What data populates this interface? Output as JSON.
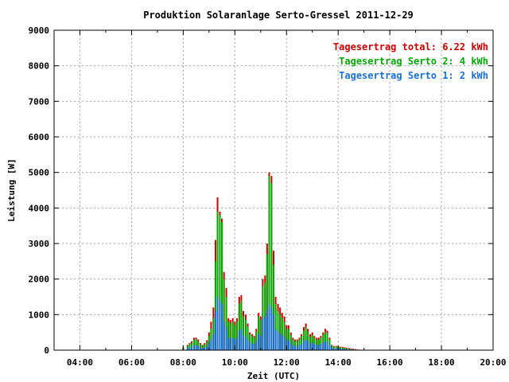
{
  "chart_data": {
    "type": "bar",
    "title": "Produktion Solaranlage Serto-Gressel 2011-12-29",
    "xlabel": "Zeit (UTC)",
    "ylabel": "Leistung [W]",
    "xlim": [
      3.0,
      20.0
    ],
    "ylim": [
      0,
      9000
    ],
    "x_ticks": [
      4,
      6,
      8,
      10,
      12,
      14,
      16,
      18,
      20
    ],
    "x_tick_labels": [
      "04:00",
      "06:00",
      "08:00",
      "10:00",
      "12:00",
      "14:00",
      "16:00",
      "18:00",
      "20:00"
    ],
    "y_ticks": [
      0,
      1000,
      2000,
      3000,
      4000,
      5000,
      6000,
      7000,
      8000,
      9000
    ],
    "y_tick_labels": [
      "0",
      "1000",
      "2000",
      "3000",
      "4000",
      "5000",
      "6000",
      "7000",
      "8000",
      "9000"
    ],
    "grid": true,
    "legend_position": "top-right",
    "legend": [
      {
        "label": "Tagesertrag total: 6.22 kWh",
        "color": "#cc0000"
      },
      {
        "label": "Tagesertrag Serto 2: 4 kWh",
        "color": "#00aa00"
      },
      {
        "label": "Tagesertrag Serto 1: 2 kWh",
        "color": "#1a6fd6"
      }
    ],
    "series": [
      {
        "name": "Tagesertrag total",
        "color": "#cc0000"
      },
      {
        "name": "Tagesertrag Serto 2",
        "color": "#00aa00"
      },
      {
        "name": "Tagesertrag Serto 1",
        "color": "#1a6fd6"
      }
    ],
    "x": [
      8.0,
      8.17,
      8.25,
      8.33,
      8.42,
      8.5,
      8.58,
      8.67,
      8.75,
      8.83,
      8.92,
      9.0,
      9.08,
      9.17,
      9.25,
      9.33,
      9.42,
      9.5,
      9.58,
      9.67,
      9.75,
      9.83,
      9.92,
      10.0,
      10.08,
      10.17,
      10.25,
      10.33,
      10.42,
      10.5,
      10.58,
      10.67,
      10.75,
      10.83,
      10.92,
      11.0,
      11.08,
      11.17,
      11.25,
      11.33,
      11.42,
      11.5,
      11.58,
      11.67,
      11.75,
      11.83,
      11.92,
      12.0,
      12.08,
      12.17,
      12.25,
      12.33,
      12.42,
      12.5,
      12.58,
      12.67,
      12.75,
      12.83,
      12.92,
      13.0,
      13.08,
      13.17,
      13.25,
      13.33,
      13.42,
      13.5,
      13.58,
      13.67,
      13.75,
      13.83,
      13.92,
      14.0,
      14.08,
      14.17,
      14.25,
      14.33,
      14.42,
      14.5,
      14.58,
      14.67,
      14.75,
      14.83,
      14.92,
      15.0,
      15.08,
      15.17,
      15.25,
      15.33,
      15.42
    ],
    "total": [
      80,
      150,
      200,
      250,
      350,
      350,
      300,
      200,
      150,
      200,
      280,
      500,
      800,
      1200,
      3100,
      4300,
      3900,
      3700,
      2200,
      1750,
      900,
      850,
      900,
      800,
      900,
      1500,
      1550,
      1100,
      1000,
      750,
      500,
      450,
      400,
      600,
      1050,
      950,
      2000,
      2100,
      3000,
      5000,
      4900,
      2800,
      1500,
      1300,
      1200,
      1050,
      950,
      700,
      700,
      500,
      350,
      300,
      300,
      350,
      450,
      650,
      750,
      600,
      450,
      500,
      400,
      350,
      350,
      400,
      500,
      600,
      550,
      350,
      150,
      120,
      120,
      110,
      100,
      90,
      80,
      70,
      60,
      50,
      40,
      30,
      20,
      0,
      0,
      0,
      0,
      0,
      0,
      0,
      0
    ],
    "serto2": [
      70,
      120,
      170,
      200,
      300,
      300,
      250,
      170,
      120,
      160,
      230,
      400,
      600,
      900,
      2500,
      3900,
      3800,
      3600,
      2000,
      1500,
      800,
      750,
      800,
      700,
      800,
      1300,
      1400,
      950,
      850,
      650,
      450,
      400,
      350,
      520,
      950,
      850,
      1800,
      1900,
      2700,
      4900,
      4700,
      2400,
      1300,
      1100,
      1000,
      900,
      800,
      600,
      600,
      430,
      300,
      250,
      250,
      300,
      400,
      550,
      650,
      520,
      380,
      430,
      350,
      300,
      300,
      350,
      430,
      520,
      470,
      300,
      130,
      100,
      100,
      90,
      80,
      70,
      60,
      50,
      40,
      30,
      20,
      15,
      10,
      0,
      0,
      0,
      0,
      0,
      0,
      0,
      0
    ],
    "serto1": [
      30,
      60,
      80,
      100,
      140,
      140,
      120,
      80,
      60,
      80,
      110,
      200,
      300,
      450,
      1100,
      1500,
      1400,
      1300,
      800,
      650,
      350,
      330,
      350,
      300,
      350,
      550,
      600,
      420,
      380,
      300,
      210,
      190,
      170,
      250,
      450,
      400,
      900,
      950,
      1100,
      1300,
      1200,
      1000,
      600,
      520,
      480,
      420,
      380,
      290,
      290,
      210,
      150,
      120,
      120,
      150,
      190,
      260,
      300,
      250,
      190,
      210,
      170,
      150,
      150,
      170,
      210,
      250,
      230,
      150,
      70,
      55,
      55,
      50,
      45,
      40,
      35,
      30,
      25,
      20,
      15,
      10,
      5,
      0,
      0,
      0,
      0,
      0,
      0,
      0,
      0
    ]
  }
}
